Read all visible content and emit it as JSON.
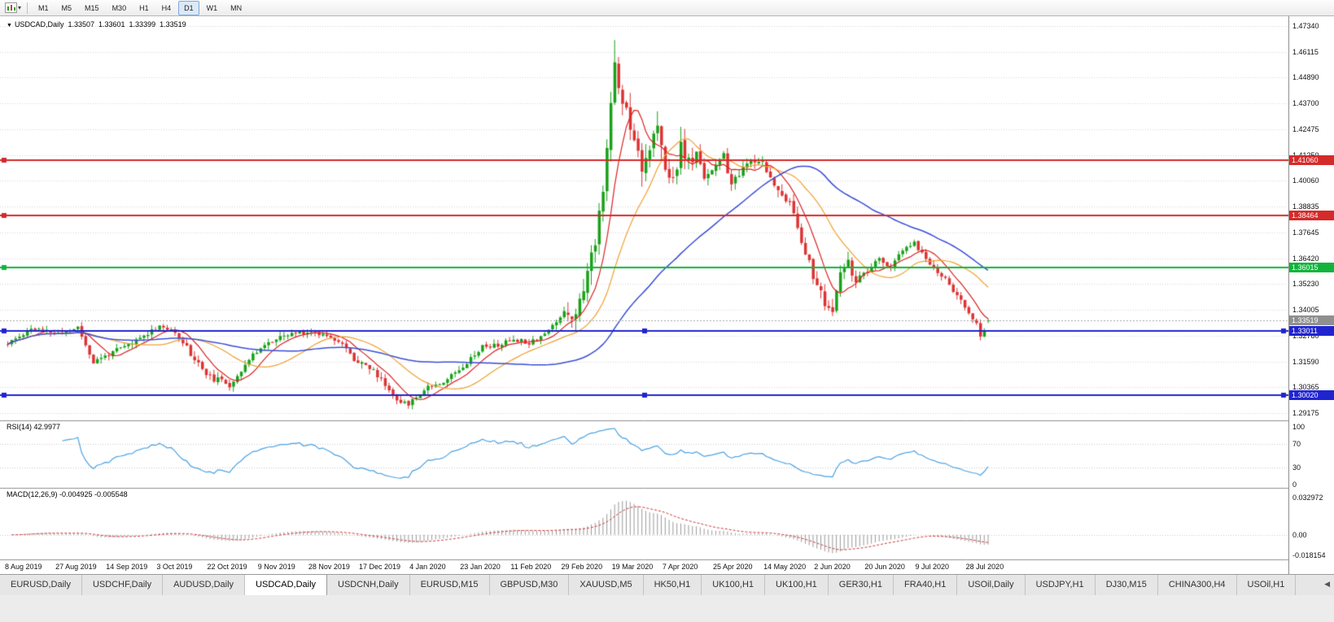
{
  "toolbar": {
    "dropdown_glyph": "▾",
    "timeframes": [
      "M1",
      "M5",
      "M15",
      "M30",
      "H1",
      "H4",
      "D1",
      "W1",
      "MN"
    ],
    "active_timeframe": "D1"
  },
  "chart": {
    "header": {
      "dropdown_glyph": "▼",
      "title": "USDCAD,Daily",
      "open": "1.33507",
      "high": "1.33601",
      "low": "1.33399",
      "close": "1.33519"
    },
    "price_scale_ticks": [
      "1.47340",
      "1.46115",
      "1.44890",
      "1.43700",
      "1.42475",
      "1.41250",
      "1.40060",
      "1.38835",
      "1.37645",
      "1.36420",
      "1.35230",
      "1.34005",
      "1.32780",
      "1.31590",
      "1.30365",
      "1.29175"
    ],
    "hlines": [
      {
        "price": 1.4106,
        "label": "1.41060",
        "color": "#d42a2a",
        "selected": false
      },
      {
        "price": 1.38464,
        "label": "1.38464",
        "color": "#d42a2a",
        "selected": false
      },
      {
        "price": 1.36015,
        "label": "1.36015",
        "color": "#10b43c",
        "selected": false
      },
      {
        "price": 1.33011,
        "label": "1.33011",
        "color": "#2024cf",
        "selected": true
      },
      {
        "price": 1.3002,
        "label": "1.30020",
        "color": "#2024cf",
        "selected": true
      }
    ],
    "current_price": {
      "value": 1.33519,
      "label": "1.33519",
      "color": "#8f8f8f"
    },
    "date_labels": [
      "8 Aug 2019",
      "27 Aug 2019",
      "14 Sep 2019",
      "3 Oct 2019",
      "22 Oct 2019",
      "9 Nov 2019",
      "28 Nov 2019",
      "17 Dec 2019",
      "4 Jan 2020",
      "23 Jan 2020",
      "11 Feb 2020",
      "29 Feb 2020",
      "19 Mar 2020",
      "7 Apr 2020",
      "25 Apr 2020",
      "14 May 2020",
      "2 Jun 2020",
      "20 Jun 2020",
      "9 Jul 2020",
      "28 Jul 2020"
    ]
  },
  "indicators": {
    "rsi": {
      "label": "RSI(14) 42.9977",
      "value": 42.9977,
      "period": 14,
      "levels": [
        "100",
        "70",
        "30",
        "0"
      ],
      "line_color": "#4ba3e3"
    },
    "macd": {
      "label": "MACD(12,26,9) -0.004925 -0.005548",
      "macd_value": -0.004925,
      "signal_value": -0.005548,
      "scale": [
        "0.032972",
        "0.00",
        "-0.018154"
      ],
      "scale_max": 0.032972,
      "scale_min": -0.018154,
      "histogram_color": "#9a9a9a",
      "signal_color": "#d23a3a"
    }
  },
  "tabs": {
    "scroll_glyph": "◀",
    "active": "USDCAD,Daily",
    "items": [
      "EURUSD,Daily",
      "USDCHF,Daily",
      "AUDUSD,Daily",
      "USDCAD,Daily",
      "USDCNH,Daily",
      "EURUSD,M15",
      "GBPUSD,M30",
      "XAUUSD,M5",
      "HK50,H1",
      "UK100,H1",
      "UK100,H1",
      "GER30,H1",
      "FRA40,H1",
      "USOil,Daily",
      "USDJPY,H1",
      "DJ30,M15",
      "CHINA300,H4",
      "USOil,H1"
    ]
  },
  "chart_data": {
    "type": "candlestick",
    "symbol": "USDCAD",
    "timeframe": "Daily",
    "x_range": {
      "start": "8 Aug 2019",
      "end": "Aug 2020",
      "candle_count": 253
    },
    "y_axis": {
      "top": 1.4734,
      "bottom": 1.29175
    },
    "ohlc_display": {
      "open": 1.33507,
      "high": 1.33601,
      "low": 1.33399,
      "close": 1.33519
    },
    "spike": {
      "index": 156,
      "high": 1.4668
    },
    "close_anchors": [
      [
        0,
        1.324
      ],
      [
        6,
        1.3315
      ],
      [
        13,
        1.329
      ],
      [
        18,
        1.332
      ],
      [
        22,
        1.3155
      ],
      [
        26,
        1.3195
      ],
      [
        32,
        1.3245
      ],
      [
        39,
        1.333
      ],
      [
        44,
        1.328
      ],
      [
        48,
        1.317
      ],
      [
        52,
        1.3085
      ],
      [
        57,
        1.305
      ],
      [
        62,
        1.3165
      ],
      [
        65,
        1.323
      ],
      [
        70,
        1.327
      ],
      [
        74,
        1.3295
      ],
      [
        78,
        1.33
      ],
      [
        83,
        1.328
      ],
      [
        86,
        1.324
      ],
      [
        89,
        1.317
      ],
      [
        91,
        1.316
      ],
      [
        95,
        1.3095
      ],
      [
        99,
        1.3005
      ],
      [
        102,
        1.2958
      ],
      [
        104,
        1.2975
      ],
      [
        108,
        1.3045
      ],
      [
        112,
        1.3065
      ],
      [
        117,
        1.314
      ],
      [
        122,
        1.323
      ],
      [
        126,
        1.3235
      ],
      [
        130,
        1.3265
      ],
      [
        134,
        1.325
      ],
      [
        138,
        1.329
      ],
      [
        141,
        1.3345
      ],
      [
        143,
        1.34
      ],
      [
        145,
        1.3375
      ],
      [
        147,
        1.343
      ],
      [
        149,
        1.358
      ],
      [
        151,
        1.373
      ],
      [
        153,
        1.399
      ],
      [
        155,
        1.435
      ],
      [
        156,
        1.456
      ],
      [
        157,
        1.444
      ],
      [
        159,
        1.434
      ],
      [
        161,
        1.422
      ],
      [
        163,
        1.408
      ],
      [
        165,
        1.417
      ],
      [
        167,
        1.425
      ],
      [
        169,
        1.405
      ],
      [
        171,
        1.402
      ],
      [
        173,
        1.416
      ],
      [
        175,
        1.409
      ],
      [
        177,
        1.413
      ],
      [
        179,
        1.403
      ],
      [
        182,
        1.408
      ],
      [
        184,
        1.412
      ],
      [
        186,
        1.399
      ],
      [
        188,
        1.403
      ],
      [
        190,
        1.41
      ],
      [
        192,
        1.408
      ],
      [
        194,
        1.411
      ],
      [
        195,
        1.406
      ],
      [
        197,
        1.398
      ],
      [
        199,
        1.395
      ],
      [
        201,
        1.39
      ],
      [
        203,
        1.379
      ],
      [
        205,
        1.368
      ],
      [
        207,
        1.356
      ],
      [
        208,
        1.352
      ],
      [
        210,
        1.343
      ],
      [
        212,
        1.339
      ],
      [
        214,
        1.357
      ],
      [
        216,
        1.362
      ],
      [
        218,
        1.354
      ],
      [
        221,
        1.358
      ],
      [
        224,
        1.364
      ],
      [
        227,
        1.36
      ],
      [
        230,
        1.368
      ],
      [
        233,
        1.3715
      ],
      [
        236,
        1.364
      ],
      [
        239,
        1.358
      ],
      [
        241,
        1.3545
      ],
      [
        243,
        1.3495
      ],
      [
        245,
        1.344
      ],
      [
        247,
        1.3385
      ],
      [
        249,
        1.333
      ],
      [
        250,
        1.327
      ],
      [
        251,
        1.3315
      ],
      [
        252,
        1.33519
      ]
    ],
    "volatility_zones": [
      [
        46,
        58,
        1.3
      ],
      [
        88,
        103,
        1.3
      ],
      [
        144,
        176,
        3.2
      ],
      [
        177,
        200,
        1.6
      ],
      [
        202,
        218,
        1.8
      ]
    ],
    "moving_averages": [
      {
        "name": "fast",
        "period": 8,
        "color": "#dd2222"
      },
      {
        "name": "mid",
        "period": 21,
        "color": "#f0a030"
      },
      {
        "name": "slow",
        "period": 55,
        "color": "#3a4ed6"
      }
    ],
    "up_color": "#19a119",
    "down_color": "#dd3333",
    "grid_color": "#d6d6d6",
    "horizontal_line_prices": [
      1.4106,
      1.38464,
      1.36015,
      1.33011,
      1.3002
    ]
  }
}
